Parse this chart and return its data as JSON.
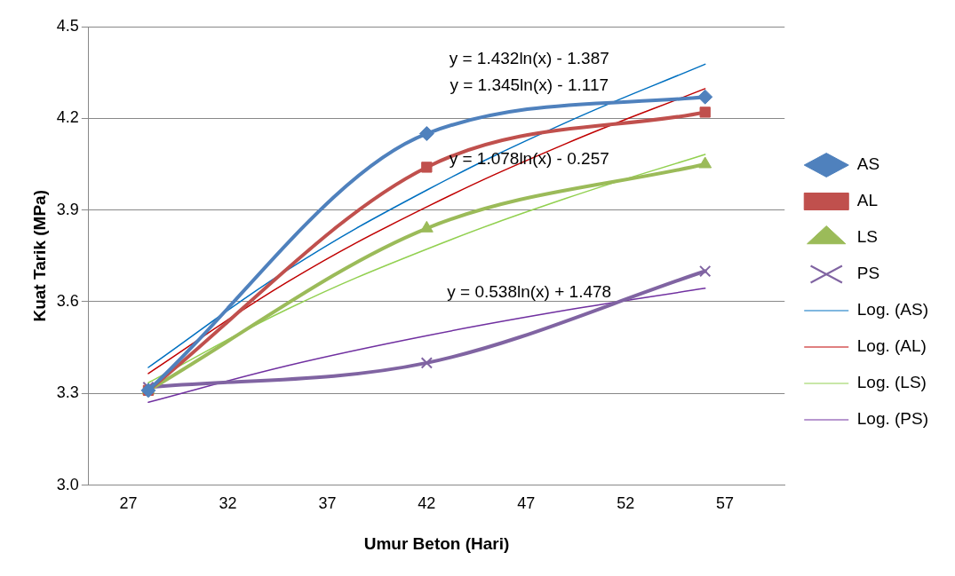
{
  "chart_data": {
    "type": "line",
    "xlabel": "Umur Beton (Hari)",
    "ylabel": "Kuat Tarik (MPa)",
    "xlim": [
      25,
      60
    ],
    "xticks": [
      27,
      32,
      37,
      42,
      47,
      52,
      57
    ],
    "ylim": [
      3.0,
      4.5
    ],
    "yticks": [
      {
        "value": 3.0,
        "label": "3.0"
      },
      3.3,
      3.6,
      3.9,
      4.2,
      4.5
    ],
    "grid": "y",
    "legend": "right",
    "series": [
      {
        "name": "AS",
        "color": "#4f81bd",
        "marker": "diamond",
        "x": [
          28,
          42,
          56
        ],
        "values": [
          3.31,
          4.15,
          4.27
        ]
      },
      {
        "name": "AL",
        "color": "#c0504d",
        "marker": "square",
        "x": [
          28,
          42,
          56
        ],
        "values": [
          3.31,
          4.04,
          4.22
        ]
      },
      {
        "name": "LS",
        "color": "#9bbb59",
        "marker": "triangle",
        "x": [
          28,
          42,
          56
        ],
        "values": [
          3.31,
          3.84,
          4.05
        ]
      },
      {
        "name": "PS",
        "color": "#8064a2",
        "marker": "cross",
        "x": [
          28,
          42,
          56
        ],
        "values": [
          3.32,
          3.4,
          3.7
        ]
      },
      {
        "name": "Log. (AS)",
        "color": "#0070c0",
        "marker": "none",
        "x": [
          28,
          35,
          42,
          49,
          56
        ],
        "values": [
          3.385,
          3.704,
          3.965,
          4.186,
          4.377
        ]
      },
      {
        "name": "Log. (AL)",
        "color": "#c00000",
        "marker": "none",
        "x": [
          28,
          35,
          42,
          49,
          56
        ],
        "values": [
          3.365,
          3.665,
          3.91,
          4.117,
          4.297
        ]
      },
      {
        "name": "Log. (LS)",
        "color": "#92d050",
        "marker": "none",
        "x": [
          28,
          35,
          42,
          49,
          56
        ],
        "values": [
          3.335,
          3.576,
          3.772,
          3.938,
          4.082
        ]
      },
      {
        "name": "Log. (PS)",
        "color": "#7030a0",
        "marker": "none",
        "x": [
          28,
          35,
          42,
          49,
          56
        ],
        "values": [
          3.271,
          3.391,
          3.489,
          3.572,
          3.644
        ]
      }
    ],
    "annotations": [
      "y = 1.432ln(x) - 1.387",
      "y = 1.345ln(x) - 1.117",
      "y = 1.078ln(x) - 0.257",
      "y = 0.538ln(x) + 1.478"
    ]
  }
}
